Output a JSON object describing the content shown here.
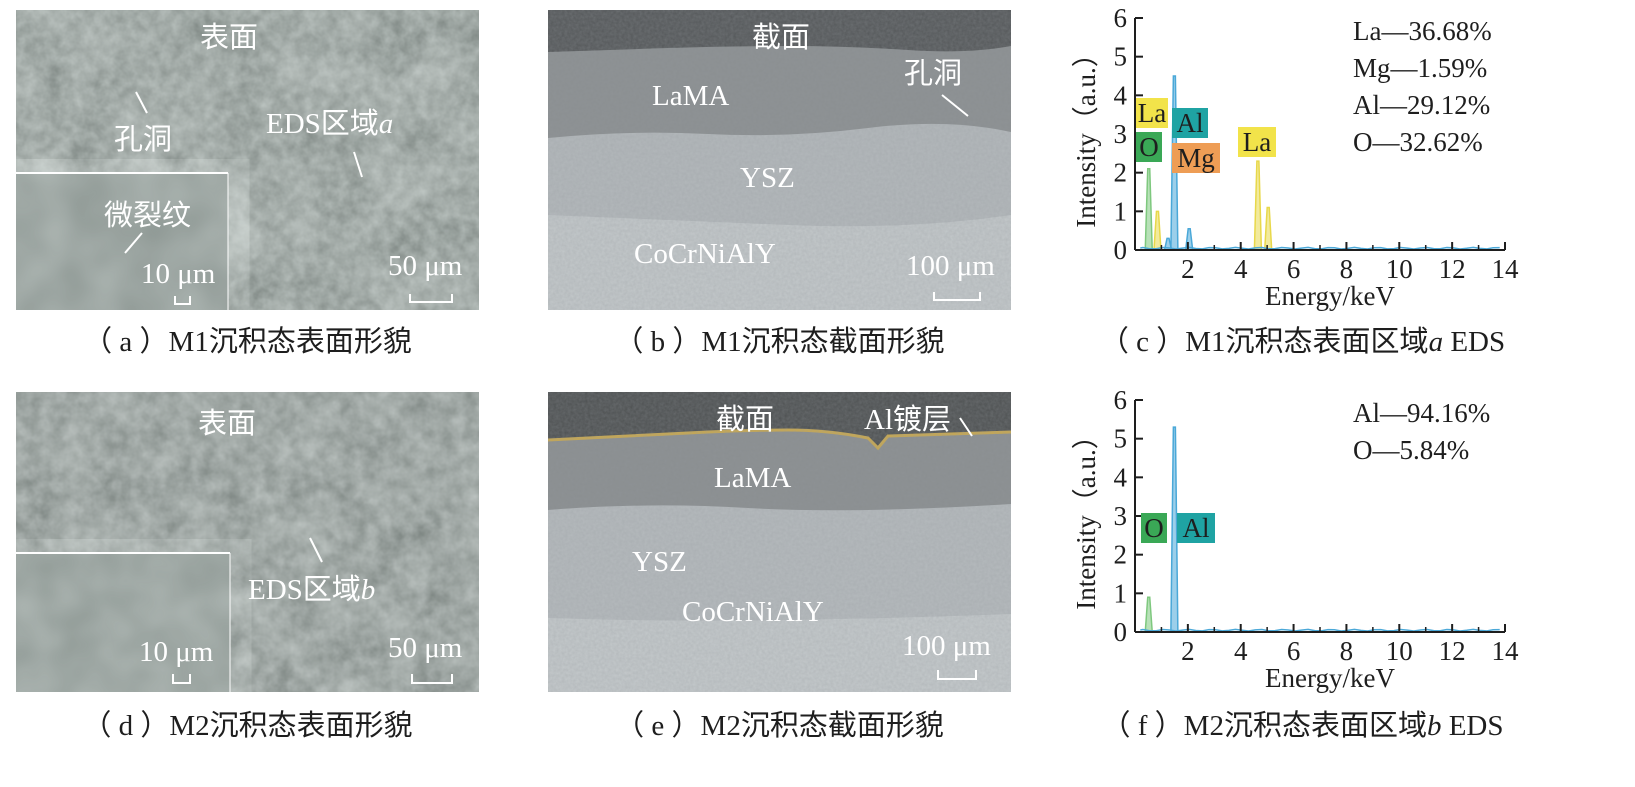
{
  "panels": {
    "a": {
      "caption": "（ a ）M1沉积态表面形貌",
      "label_surface": "表面",
      "label_pore": "孔洞",
      "label_eds_prefix": "EDS区域",
      "label_eds_var": "a",
      "label_crack": "微裂纹",
      "scale_inset": "10 μm",
      "scale_main": "50 μm"
    },
    "b": {
      "caption": "（ b ）M1沉积态截面形貌",
      "label_section": "截面",
      "label_pore": "孔洞",
      "layer_top": "LaMA",
      "layer_mid": "YSZ",
      "layer_bond": "CoCrNiAlY",
      "scale": "100 μm"
    },
    "c": {
      "caption_prefix": "（ c ）M1沉积态表面区域",
      "caption_var": "a",
      "caption_suffix": " EDS",
      "composition": [
        "La—36.68%",
        "Mg—1.59%",
        "Al—29.12%",
        "O—32.62%"
      ],
      "peak_labels": [
        "La",
        "Al",
        "O",
        "Mg",
        "La"
      ]
    },
    "d": {
      "caption": "（ d ）M2沉积态表面形貌",
      "label_surface": "表面",
      "label_eds_prefix": "EDS区域",
      "label_eds_var": "b",
      "scale_inset": "10 μm",
      "scale_main": "50 μm"
    },
    "e": {
      "caption": "（ e ）M2沉积态截面形貌",
      "label_section": "截面",
      "label_coating": "Al镀层",
      "layer_top": "LaMA",
      "layer_mid": "YSZ",
      "layer_bond": "CoCrNiAlY",
      "scale": "100 μm"
    },
    "f": {
      "caption_prefix": "（ f ）M2沉积态表面区域",
      "caption_var": "b",
      "caption_suffix": " EDS",
      "composition": [
        "Al—94.16%",
        "O—5.84%"
      ],
      "peak_labels": [
        "O",
        "Al"
      ]
    }
  },
  "colors": {
    "la_label": "#f2e34a",
    "al_label": "#1fa3a3",
    "o_label": "#3aa856",
    "mg_label": "#ee9d55",
    "spectrum_main": "#4aa8d8",
    "spectrum_yellow": "#e8d84a",
    "spectrum_green": "#7ec87e",
    "coating_line": "#c8a850"
  },
  "chart_data": [
    {
      "type": "line",
      "panel": "c",
      "xlabel": "Energy/keV",
      "ylabel": "Intensity（a.u.）",
      "xlim": [
        0,
        14
      ],
      "ylim": [
        0,
        6
      ],
      "xticks": [
        2,
        4,
        6,
        8,
        10,
        12,
        14
      ],
      "yticks": [
        0,
        1,
        2,
        3,
        4,
        5,
        6
      ],
      "peaks": [
        {
          "element": "O",
          "energy": 0.52,
          "intensity": 2.1
        },
        {
          "element": "La",
          "energy": 0.85,
          "intensity": 1.0
        },
        {
          "element": "Mg",
          "energy": 1.25,
          "intensity": 0.3
        },
        {
          "element": "Al",
          "energy": 1.49,
          "intensity": 4.5
        },
        {
          "element": "Al",
          "energy": 2.05,
          "intensity": 0.55
        },
        {
          "element": "La",
          "energy": 4.65,
          "intensity": 2.3
        },
        {
          "element": "La",
          "energy": 5.04,
          "intensity": 1.1
        }
      ]
    },
    {
      "type": "line",
      "panel": "f",
      "xlabel": "Energy/keV",
      "ylabel": "Intensity（a.u.）",
      "xlim": [
        0,
        14
      ],
      "ylim": [
        0,
        6
      ],
      "xticks": [
        2,
        4,
        6,
        8,
        10,
        12,
        14
      ],
      "yticks": [
        0,
        1,
        2,
        3,
        4,
        5,
        6
      ],
      "peaks": [
        {
          "element": "O",
          "energy": 0.52,
          "intensity": 0.9
        },
        {
          "element": "Al",
          "energy": 1.49,
          "intensity": 5.3
        }
      ]
    }
  ]
}
